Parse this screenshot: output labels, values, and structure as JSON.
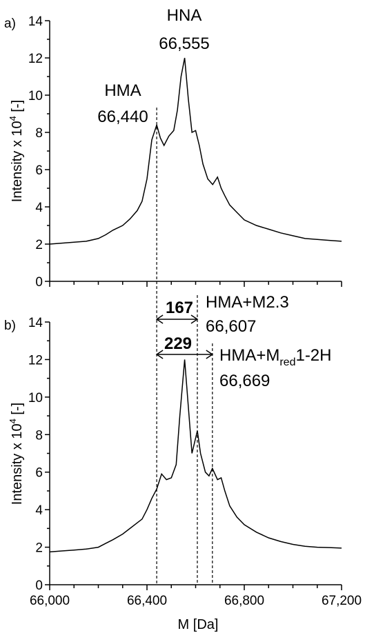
{
  "chart_data": [
    {
      "type": "line",
      "panel_label": "a)",
      "ylabel": "Intensity x 10",
      "ylabel_sup": "4",
      "ylabel_suffix": " [-]",
      "ylim": [
        0,
        14
      ],
      "yticks": [
        "0",
        "2",
        "4",
        "6",
        "8",
        "10",
        "12",
        "14"
      ],
      "xlim": [
        66000,
        67200
      ],
      "series": [
        {
          "x": [
            66000,
            66050,
            66100,
            66150,
            66200,
            66230,
            66260,
            66300,
            66330,
            66360,
            66380,
            66400,
            66420,
            66440,
            66455,
            66470,
            66490,
            66510,
            66525,
            66540,
            66555,
            66570,
            66585,
            66600,
            66615,
            66630,
            66650,
            66670,
            66690,
            66705,
            66720,
            66740,
            66770,
            66800,
            66850,
            66900,
            66950,
            67000,
            67050,
            67100,
            67150,
            67200
          ],
          "y": [
            2.0,
            2.05,
            2.1,
            2.15,
            2.3,
            2.5,
            2.75,
            3.0,
            3.35,
            3.8,
            4.3,
            5.5,
            7.6,
            8.4,
            7.7,
            7.3,
            7.8,
            8.1,
            9.2,
            11.0,
            12.0,
            9.8,
            8.0,
            8.1,
            7.3,
            6.3,
            5.5,
            5.2,
            5.6,
            5.0,
            4.6,
            4.1,
            3.7,
            3.3,
            3.0,
            2.8,
            2.6,
            2.45,
            2.3,
            2.25,
            2.2,
            2.15
          ]
        }
      ],
      "annotations": [
        {
          "name": "HNA",
          "mass": "66,555",
          "x": 66555
        },
        {
          "name": "HMA",
          "mass": "66,440",
          "x": 66440
        }
      ]
    },
    {
      "type": "line",
      "panel_label": "b)",
      "ylabel": "Intensity x 10",
      "ylabel_sup": "4",
      "ylabel_suffix": " [-]",
      "ylim": [
        0,
        14
      ],
      "yticks": [
        "0",
        "2",
        "4",
        "6",
        "8",
        "10",
        "12",
        "14"
      ],
      "xlim": [
        66000,
        67200
      ],
      "xticks": [
        "66,000",
        "66,400",
        "66,800",
        "67,200"
      ],
      "xtick_values": [
        66000,
        66400,
        66800,
        67200
      ],
      "xlabel": "M [Da]",
      "series": [
        {
          "x": [
            66000,
            66050,
            66100,
            66150,
            66200,
            66230,
            66260,
            66300,
            66330,
            66360,
            66380,
            66400,
            66420,
            66440,
            66460,
            66480,
            66500,
            66520,
            66535,
            66555,
            66570,
            66585,
            66607,
            66620,
            66640,
            66655,
            66669,
            66690,
            66705,
            66720,
            66740,
            66770,
            66800,
            66850,
            66900,
            66950,
            67000,
            67050,
            67100,
            67150,
            67200
          ],
          "y": [
            1.75,
            1.8,
            1.85,
            1.9,
            2.0,
            2.2,
            2.4,
            2.7,
            3.0,
            3.3,
            3.5,
            4.0,
            4.6,
            5.1,
            5.9,
            5.6,
            5.7,
            6.4,
            9.0,
            12.0,
            9.5,
            7.0,
            8.2,
            7.0,
            6.0,
            5.8,
            6.2,
            5.6,
            5.7,
            5.0,
            4.2,
            3.6,
            3.2,
            2.8,
            2.5,
            2.3,
            2.15,
            2.05,
            2.0,
            1.98,
            1.95
          ]
        }
      ],
      "annotations": [
        {
          "name": "HMA+M2.3",
          "mass": "66,607",
          "x": 66607
        },
        {
          "name_main": "HMA+M",
          "name_sub": "red",
          "name_tail": "1-2H",
          "mass": "66,669",
          "x": 66669
        }
      ],
      "differences": [
        {
          "value": "167",
          "from": 66440,
          "to": 66607
        },
        {
          "value": "229",
          "from": 66440,
          "to": 66669
        }
      ]
    }
  ]
}
